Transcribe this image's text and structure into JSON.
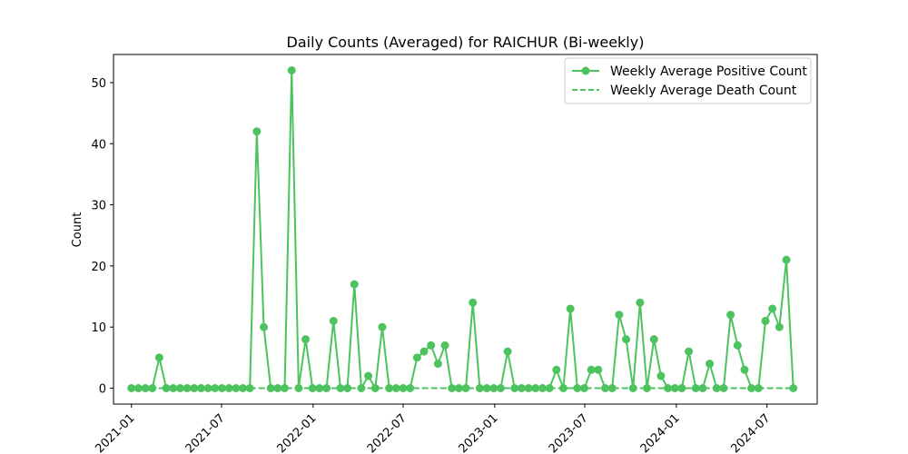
{
  "chart_data": {
    "type": "line",
    "title": "Daily Counts (Averaged) for RAICHUR (Bi-weekly)",
    "xlabel": "",
    "ylabel": "Count",
    "ylim": [
      -2.6,
      54.6
    ],
    "xlim": [
      "2020-11-26",
      "2024-10-10"
    ],
    "yticks": [
      0,
      10,
      20,
      30,
      40,
      50
    ],
    "xticks": [
      {
        "date": "2021-01-01",
        "label": "2021-01"
      },
      {
        "date": "2021-07-01",
        "label": "2021-07"
      },
      {
        "date": "2022-01-01",
        "label": "2022-01"
      },
      {
        "date": "2022-07-01",
        "label": "2022-07"
      },
      {
        "date": "2023-01-01",
        "label": "2023-01"
      },
      {
        "date": "2023-07-01",
        "label": "2023-07"
      },
      {
        "date": "2024-01-01",
        "label": "2024-01"
      },
      {
        "date": "2024-07-01",
        "label": "2024-07"
      }
    ],
    "grid": false,
    "legend_position": "top-right",
    "series": [
      {
        "name": "Weekly Average Positive Count",
        "color": "#4dc35f",
        "style": "solid",
        "marker": "circle",
        "points": [
          [
            "2021-01-01",
            0
          ],
          [
            "2021-01-15",
            0
          ],
          [
            "2021-01-29",
            0
          ],
          [
            "2021-02-12",
            0
          ],
          [
            "2021-02-26",
            5
          ],
          [
            "2021-03-12",
            0
          ],
          [
            "2021-03-26",
            0
          ],
          [
            "2021-04-09",
            0
          ],
          [
            "2021-04-23",
            0
          ],
          [
            "2021-05-07",
            0
          ],
          [
            "2021-05-21",
            0
          ],
          [
            "2021-06-04",
            0
          ],
          [
            "2021-06-18",
            0
          ],
          [
            "2021-07-02",
            0
          ],
          [
            "2021-07-16",
            0
          ],
          [
            "2021-07-30",
            0
          ],
          [
            "2021-08-13",
            0
          ],
          [
            "2021-08-27",
            0
          ],
          [
            "2021-09-10",
            42
          ],
          [
            "2021-09-24",
            10
          ],
          [
            "2021-10-08",
            0
          ],
          [
            "2021-10-22",
            0
          ],
          [
            "2021-11-05",
            0
          ],
          [
            "2021-11-19",
            52
          ],
          [
            "2021-12-03",
            0
          ],
          [
            "2021-12-17",
            8
          ],
          [
            "2021-12-31",
            0
          ],
          [
            "2022-01-14",
            0
          ],
          [
            "2022-01-28",
            0
          ],
          [
            "2022-02-11",
            11
          ],
          [
            "2022-02-25",
            0
          ],
          [
            "2022-03-11",
            0
          ],
          [
            "2022-03-25",
            17
          ],
          [
            "2022-04-08",
            0
          ],
          [
            "2022-04-22",
            2
          ],
          [
            "2022-05-06",
            0
          ],
          [
            "2022-05-20",
            10
          ],
          [
            "2022-06-03",
            0
          ],
          [
            "2022-06-17",
            0
          ],
          [
            "2022-07-01",
            0
          ],
          [
            "2022-07-15",
            0
          ],
          [
            "2022-07-29",
            5
          ],
          [
            "2022-08-12",
            6
          ],
          [
            "2022-08-26",
            7
          ],
          [
            "2022-09-09",
            4
          ],
          [
            "2022-09-23",
            7
          ],
          [
            "2022-10-07",
            0
          ],
          [
            "2022-10-21",
            0
          ],
          [
            "2022-11-04",
            0
          ],
          [
            "2022-11-18",
            14
          ],
          [
            "2022-12-02",
            0
          ],
          [
            "2022-12-16",
            0
          ],
          [
            "2022-12-30",
            0
          ],
          [
            "2023-01-13",
            0
          ],
          [
            "2023-01-27",
            6
          ],
          [
            "2023-02-10",
            0
          ],
          [
            "2023-02-24",
            0
          ],
          [
            "2023-03-10",
            0
          ],
          [
            "2023-03-24",
            0
          ],
          [
            "2023-04-07",
            0
          ],
          [
            "2023-04-21",
            0
          ],
          [
            "2023-05-05",
            3
          ],
          [
            "2023-05-19",
            0
          ],
          [
            "2023-06-02",
            13
          ],
          [
            "2023-06-16",
            0
          ],
          [
            "2023-06-30",
            0
          ],
          [
            "2023-07-14",
            3
          ],
          [
            "2023-07-28",
            3
          ],
          [
            "2023-08-11",
            0
          ],
          [
            "2023-08-25",
            0
          ],
          [
            "2023-09-08",
            12
          ],
          [
            "2023-09-22",
            8
          ],
          [
            "2023-10-06",
            0
          ],
          [
            "2023-10-20",
            14
          ],
          [
            "2023-11-03",
            0
          ],
          [
            "2023-11-17",
            8
          ],
          [
            "2023-12-01",
            2
          ],
          [
            "2023-12-15",
            0
          ],
          [
            "2023-12-29",
            0
          ],
          [
            "2024-01-12",
            0
          ],
          [
            "2024-01-26",
            6
          ],
          [
            "2024-02-09",
            0
          ],
          [
            "2024-02-23",
            0
          ],
          [
            "2024-03-08",
            4
          ],
          [
            "2024-03-22",
            0
          ],
          [
            "2024-04-05",
            0
          ],
          [
            "2024-04-19",
            12
          ],
          [
            "2024-05-03",
            7
          ],
          [
            "2024-05-17",
            3
          ],
          [
            "2024-05-31",
            0
          ],
          [
            "2024-06-14",
            0
          ],
          [
            "2024-06-28",
            11
          ],
          [
            "2024-07-12",
            13
          ],
          [
            "2024-07-26",
            10
          ],
          [
            "2024-08-09",
            21
          ],
          [
            "2024-08-23",
            0
          ]
        ]
      },
      {
        "name": "Weekly Average Death Count",
        "color": "#4dc35f",
        "style": "dashed",
        "marker": "none",
        "points": [
          [
            "2021-01-01",
            0
          ],
          [
            "2024-08-23",
            0
          ]
        ]
      }
    ]
  }
}
